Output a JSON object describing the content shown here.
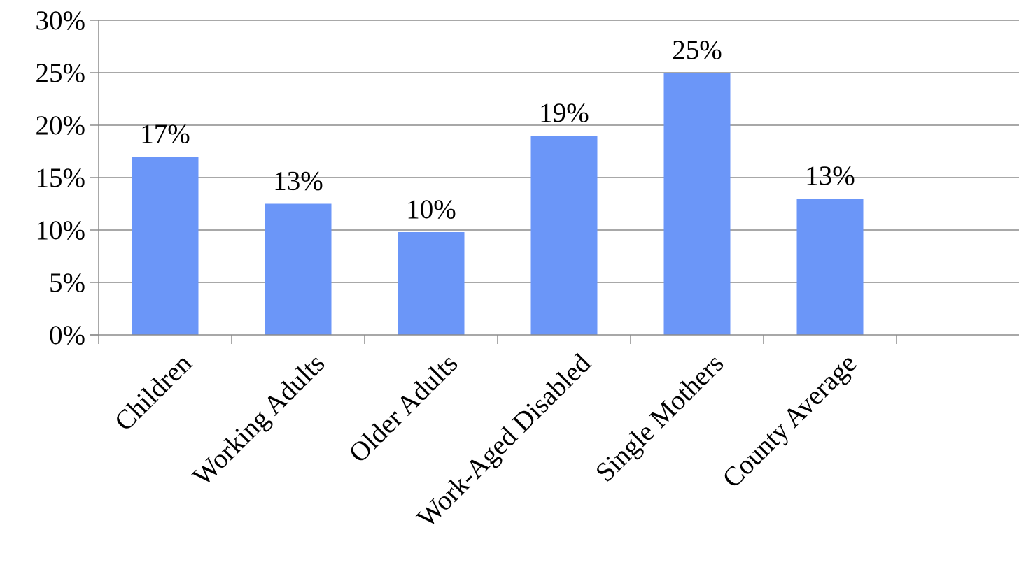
{
  "chart_data": {
    "type": "bar",
    "categories": [
      "Children",
      "Working Adults",
      "Older Adults",
      "Work-Aged Disabled",
      "Single Mothers",
      "County Average"
    ],
    "values": [
      17,
      12.5,
      9.8,
      19,
      25,
      13
    ],
    "data_labels": [
      "17%",
      "13%",
      "10%",
      "19%",
      "25%",
      "13%"
    ],
    "y_ticks": [
      "0%",
      "5%",
      "10%",
      "15%",
      "20%",
      "25%",
      "30%"
    ],
    "ylim": [
      0,
      30
    ],
    "y_unit": "%",
    "grid": true,
    "bar_color": "#6b96f8",
    "gridline_color": "#8c8c8c"
  }
}
